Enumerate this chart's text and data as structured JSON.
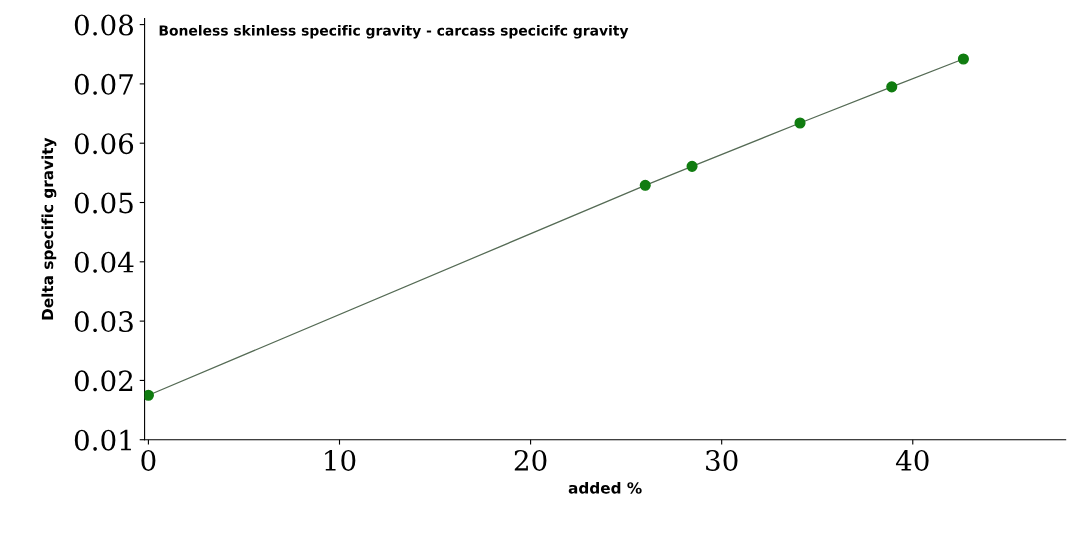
{
  "chart_data": {
    "type": "line",
    "title": "Boneless skinless specific gravity - carcass specicifc gravity",
    "xlabel": "added %",
    "ylabel": "Delta specific gravity",
    "x": [
      0,
      26.0,
      28.45,
      34.1,
      38.9,
      42.65
    ],
    "series": [
      {
        "color": "#107c10",
        "values": [
          0.0175,
          0.0529,
          0.0561,
          0.0634,
          0.0695,
          0.0742
        ]
      }
    ],
    "marker": "circle",
    "line_style": "solid",
    "xlim": [
      -0.2,
      48
    ],
    "ylim": [
      0.01,
      0.081
    ],
    "xticks": [
      0,
      10,
      20,
      30,
      40
    ],
    "yticks": [
      0.01,
      0.02,
      0.03,
      0.04,
      0.05,
      0.06,
      0.07,
      0.08
    ]
  }
}
